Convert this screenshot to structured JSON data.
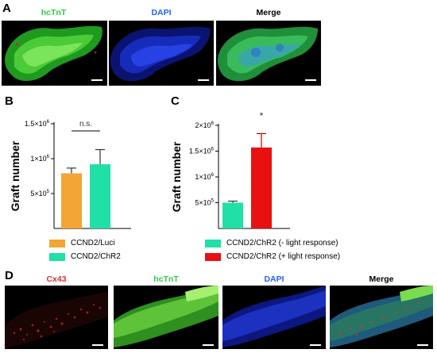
{
  "panel_a": {
    "letter": "A",
    "images": [
      {
        "label": "hcTnT",
        "label_color": "#2ecc40"
      },
      {
        "label": "DAPI",
        "label_color": "#2060ff"
      },
      {
        "label": "Merge",
        "label_color": "#000000"
      }
    ]
  },
  "panel_b": {
    "letter": "B"
  },
  "panel_c": {
    "letter": "C"
  },
  "panel_d": {
    "letter": "D",
    "images": [
      {
        "label": "Cx43",
        "label_color": "#e03030"
      },
      {
        "label": "hcTnT",
        "label_color": "#2ecc40"
      },
      {
        "label": "DAPI",
        "label_color": "#2060ff"
      },
      {
        "label": "Merge",
        "label_color": "#000000"
      }
    ]
  },
  "chart_data": [
    {
      "type": "bar",
      "ylabel": "Graft number",
      "ylim": [
        0,
        1500000
      ],
      "yticks": [
        {
          "value": 500000,
          "label_base": "5×10",
          "label_exp": "5"
        },
        {
          "value": 1000000,
          "label_base": "1×10",
          "label_exp": "6"
        },
        {
          "value": 1500000,
          "label_base": "1.5×10",
          "label_exp": "6"
        }
      ],
      "categories": [
        "CCND2/Luci",
        "CCND2/ChR2"
      ],
      "values": [
        790000,
        920000
      ],
      "errors": [
        75000,
        210000
      ],
      "colors": [
        "#f3a535",
        "#20e0a8"
      ],
      "annotation": "n.s.",
      "legend": [
        "CCND2/Luci",
        "CCND2/ChR2"
      ]
    },
    {
      "type": "bar",
      "ylabel": "Graft number",
      "ylim": [
        0,
        2000000
      ],
      "yticks": [
        {
          "value": 500000,
          "label_base": "5×10",
          "label_exp": "5"
        },
        {
          "value": 1000000,
          "label_base": "1×10",
          "label_exp": "6"
        },
        {
          "value": 1500000,
          "label_base": "1.5×10",
          "label_exp": "6"
        },
        {
          "value": 2000000,
          "label_base": "2×10",
          "label_exp": "6"
        }
      ],
      "categories": [
        "CCND2/ChR2 (- light response)",
        "CCND2/ChR2 (+ light response)"
      ],
      "values": [
        500000,
        1570000
      ],
      "errors": [
        30000,
        270000
      ],
      "colors": [
        "#20e0a8",
        "#e81010"
      ],
      "annotation": "*",
      "legend": [
        "CCND2/ChR2 (- light response)",
        "CCND2/ChR2 (+ light response)"
      ]
    }
  ]
}
